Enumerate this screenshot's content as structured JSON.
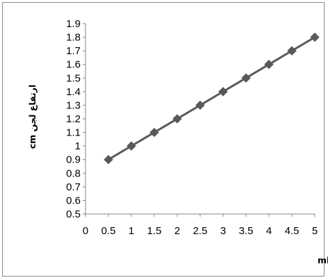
{
  "chart_data": {
    "type": "line",
    "title": "",
    "xlabel": "میزان ماده منعقد کننده PASIC مصرفی ml /L",
    "ylabel": "ارتفاع لجن cm",
    "xlim": [
      0,
      5
    ],
    "ylim": [
      0.5,
      1.9
    ],
    "x_ticks": [
      "0",
      "0.5",
      "1",
      "1.5",
      "2",
      "2.5",
      "3",
      "3.5",
      "4",
      "4.5",
      "5"
    ],
    "y_ticks": [
      "0.5",
      "0.6",
      "0.7",
      "0.8",
      "0.9",
      "1",
      "1.1",
      "1.2",
      "1.3",
      "1.4",
      "1.5",
      "1.6",
      "1.7",
      "1.8",
      "1.9"
    ],
    "grid": false,
    "legend": "none",
    "series": [
      {
        "x": [
          0.5,
          1,
          1.5,
          2,
          2.5,
          3,
          3.5,
          4,
          4.5,
          5
        ],
        "y": [
          0.9,
          1.0,
          1.1,
          1.2,
          1.3,
          1.4,
          1.5,
          1.6,
          1.7,
          1.8
        ],
        "color": "#595959",
        "marker": "diamond"
      }
    ]
  }
}
